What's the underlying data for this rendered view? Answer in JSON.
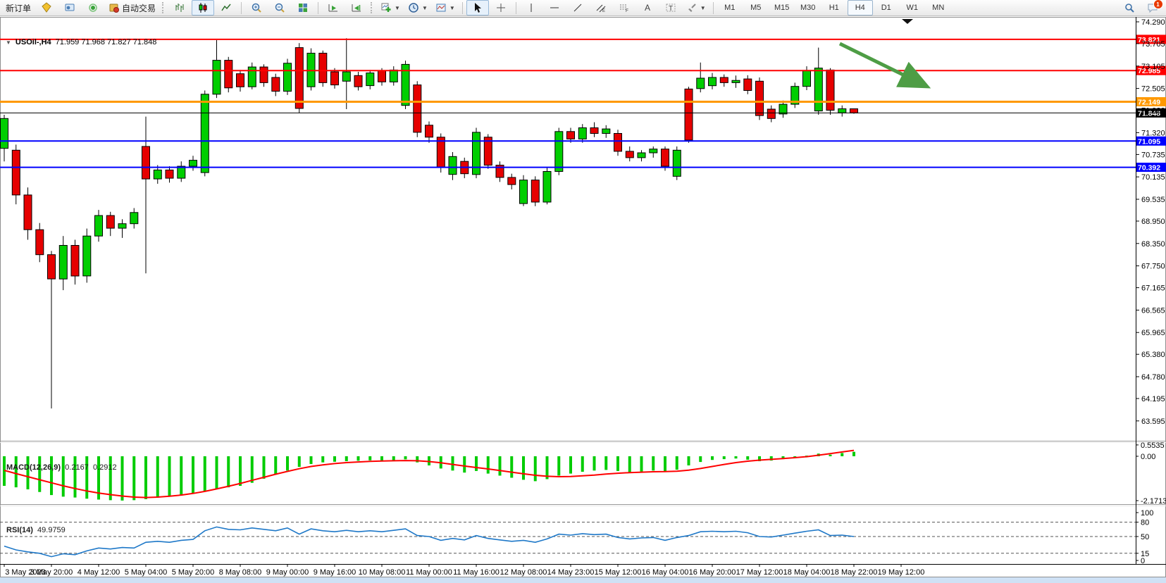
{
  "toolbar": {
    "new_order": "新订单",
    "auto_trading": "自动交易",
    "timeframes": [
      "M1",
      "M5",
      "M15",
      "M30",
      "H1",
      "H4",
      "D1",
      "W1",
      "MN"
    ],
    "active_timeframe": "H4",
    "badge_count": "1"
  },
  "chart": {
    "title_symbol": "USOil-,H4",
    "title_ohlc": "71.959 71.968 71.827 71.848"
  },
  "macd": {
    "name": "MACD(12,26,9)",
    "main": "0.2167",
    "signal": "0.2912",
    "axis": [
      "0.5535",
      "0.00",
      "-2.1713"
    ]
  },
  "rsi": {
    "name": "RSI(14)",
    "value": "49.9759",
    "axis": [
      "100",
      "80",
      "50",
      "15",
      "0"
    ]
  },
  "levels": [
    {
      "label": "73.821",
      "price": 73.821,
      "color": "#FF0000",
      "width": 2
    },
    {
      "label": "72.985",
      "price": 72.985,
      "color": "#FF0000",
      "width": 2
    },
    {
      "label": "72.149",
      "price": 72.149,
      "color": "#FF9900",
      "width": 3
    },
    {
      "label": "71.848",
      "price": 71.848,
      "color": "#000000",
      "width": 1
    },
    {
      "label": "71.095",
      "price": 71.095,
      "color": "#0000FF",
      "width": 2
    },
    {
      "label": "70.392",
      "price": 70.392,
      "color": "#0000FF",
      "width": 2
    }
  ],
  "price_axis": {
    "ticks": [
      "74.290",
      "73.705",
      "73.105",
      "72.505",
      "71.920",
      "71.320",
      "70.735",
      "70.135",
      "69.535",
      "68.950",
      "68.350",
      "67.750",
      "67.165",
      "66.565",
      "65.965",
      "65.380",
      "64.780",
      "64.195",
      "63.595"
    ]
  },
  "time_axis": {
    "labels": [
      "3 May 2023",
      "3 May 20:00",
      "4 May 12:00",
      "5 May 04:00",
      "5 May 20:00",
      "8 May 08:00",
      "9 May 00:00",
      "9 May 16:00",
      "10 May 08:00",
      "11 May 00:00",
      "11 May 16:00",
      "12 May 08:00",
      "14 May 23:00",
      "15 May 12:00",
      "16 May 04:00",
      "16 May 20:00",
      "17 May 12:00",
      "18 May 04:00",
      "18 May 22:00",
      "19 May 12:00"
    ]
  },
  "colors": {
    "candle_up": "#00CE00",
    "candle_down": "#E60000",
    "candle_border": "#000000",
    "level_red": "#FF0000",
    "level_orange": "#FF9900",
    "level_blue": "#0000FF",
    "current_price": "#000000",
    "macd_hist": "#00CC00",
    "macd_signal": "#FF0000",
    "rsi_line": "#1E78C8",
    "arrow": "#4E9D45",
    "axis_text": "#000000"
  },
  "chart_data": {
    "type": "candlestick",
    "symbol": "USOil-",
    "period": "H4",
    "ylim": [
      63.595,
      74.29
    ],
    "x_labels_every_n_bars": 4,
    "candles": [
      [
        70.9,
        71.8,
        70.55,
        71.7
      ],
      [
        70.85,
        71.0,
        69.4,
        69.65
      ],
      [
        69.65,
        69.85,
        68.45,
        68.72
      ],
      [
        68.72,
        68.9,
        67.85,
        68.05
      ],
      [
        68.05,
        68.15,
        63.93,
        67.4
      ],
      [
        67.4,
        68.55,
        67.1,
        68.3
      ],
      [
        68.3,
        68.45,
        67.25,
        67.48
      ],
      [
        67.48,
        68.75,
        67.3,
        68.55
      ],
      [
        68.55,
        69.25,
        68.4,
        69.1
      ],
      [
        69.1,
        69.2,
        68.55,
        68.76
      ],
      [
        68.76,
        69.0,
        68.5,
        68.88
      ],
      [
        68.88,
        69.3,
        68.75,
        69.18
      ],
      [
        70.95,
        71.75,
        67.55,
        70.08
      ],
      [
        70.08,
        70.45,
        69.95,
        70.32
      ],
      [
        70.32,
        70.42,
        69.98,
        70.1
      ],
      [
        70.1,
        70.55,
        70.0,
        70.42
      ],
      [
        70.42,
        70.7,
        70.3,
        70.58
      ],
      [
        70.25,
        72.45,
        70.15,
        72.35
      ],
      [
        72.35,
        73.8,
        72.25,
        73.26
      ],
      [
        73.26,
        73.35,
        72.4,
        72.52
      ],
      [
        72.9,
        73.0,
        72.42,
        72.55
      ],
      [
        72.55,
        73.2,
        72.48,
        73.08
      ],
      [
        73.08,
        73.15,
        72.55,
        72.66
      ],
      [
        72.8,
        72.9,
        72.3,
        72.43
      ],
      [
        72.43,
        73.3,
        72.33,
        73.18
      ],
      [
        73.6,
        73.72,
        71.85,
        71.97
      ],
      [
        72.55,
        73.58,
        72.45,
        73.45
      ],
      [
        73.45,
        73.52,
        72.55,
        72.66
      ],
      [
        72.95,
        73.05,
        72.5,
        72.6
      ],
      [
        72.7,
        73.85,
        71.95,
        72.95
      ],
      [
        72.85,
        72.95,
        72.45,
        72.55
      ],
      [
        72.58,
        73.0,
        72.48,
        72.92
      ],
      [
        72.98,
        73.05,
        72.58,
        72.68
      ],
      [
        72.68,
        73.1,
        72.58,
        73.0
      ],
      [
        72.05,
        73.25,
        71.95,
        73.15
      ],
      [
        72.6,
        72.7,
        71.2,
        71.33
      ],
      [
        71.52,
        71.62,
        71.05,
        71.2
      ],
      [
        71.2,
        71.3,
        70.25,
        70.4
      ],
      [
        70.2,
        70.8,
        70.05,
        70.68
      ],
      [
        70.55,
        70.65,
        70.1,
        70.22
      ],
      [
        70.2,
        71.45,
        70.1,
        71.33
      ],
      [
        71.2,
        71.28,
        70.35,
        70.45
      ],
      [
        70.45,
        70.55,
        70.0,
        70.12
      ],
      [
        70.12,
        70.22,
        69.8,
        69.93
      ],
      [
        69.42,
        70.18,
        69.35,
        70.05
      ],
      [
        70.05,
        70.15,
        69.35,
        69.46
      ],
      [
        69.46,
        70.4,
        69.4,
        70.28
      ],
      [
        70.28,
        71.45,
        70.18,
        71.35
      ],
      [
        71.35,
        71.45,
        71.05,
        71.15
      ],
      [
        71.15,
        71.55,
        71.05,
        71.45
      ],
      [
        71.45,
        71.6,
        71.2,
        71.3
      ],
      [
        71.3,
        71.52,
        71.18,
        71.42
      ],
      [
        71.3,
        71.4,
        70.7,
        70.82
      ],
      [
        70.82,
        70.95,
        70.55,
        70.65
      ],
      [
        70.65,
        70.85,
        70.55,
        70.78
      ],
      [
        70.78,
        70.95,
        70.65,
        70.88
      ],
      [
        70.88,
        70.95,
        70.3,
        70.42
      ],
      [
        70.15,
        70.95,
        70.05,
        70.85
      ],
      [
        72.49,
        72.55,
        71.05,
        71.12
      ],
      [
        72.5,
        73.2,
        72.4,
        72.78
      ],
      [
        72.58,
        72.92,
        72.48,
        72.8
      ],
      [
        72.8,
        72.88,
        72.55,
        72.66
      ],
      [
        72.66,
        72.85,
        72.52,
        72.72
      ],
      [
        72.76,
        72.86,
        72.35,
        72.45
      ],
      [
        72.7,
        72.8,
        71.66,
        71.78
      ],
      [
        71.95,
        72.05,
        71.6,
        71.7
      ],
      [
        71.82,
        72.18,
        71.72,
        72.08
      ],
      [
        72.08,
        72.66,
        71.98,
        72.56
      ],
      [
        72.56,
        73.1,
        72.46,
        72.99
      ],
      [
        71.9,
        73.6,
        71.8,
        73.05
      ],
      [
        73.0,
        73.05,
        71.8,
        71.92
      ],
      [
        71.85,
        72.05,
        71.75,
        71.96
      ],
      [
        71.959,
        71.968,
        71.827,
        71.848
      ]
    ],
    "macd": {
      "params": [
        12,
        26,
        9
      ],
      "current_main": 0.2167,
      "current_signal": 0.2912,
      "scale_top": 0.5535,
      "scale_bottom": -2.1713,
      "histogram": [
        -1.45,
        -1.52,
        -1.62,
        -1.75,
        -1.9,
        -1.98,
        -2.02,
        -2.08,
        -2.12,
        -2.15,
        -2.17,
        -2.15,
        -2.1,
        -2.02,
        -1.95,
        -1.88,
        -1.8,
        -1.7,
        -1.6,
        -1.52,
        -1.45,
        -1.3,
        -1.1,
        -0.9,
        -0.7,
        -0.52,
        -0.38,
        -0.3,
        -0.27,
        -0.24,
        -0.22,
        -0.2,
        -0.21,
        -0.19,
        -0.15,
        -0.3,
        -0.45,
        -0.6,
        -0.7,
        -0.8,
        -0.72,
        -0.85,
        -0.95,
        -1.05,
        -1.15,
        -1.22,
        -1.12,
        -0.95,
        -0.85,
        -0.76,
        -0.7,
        -0.67,
        -0.72,
        -0.78,
        -0.75,
        -0.7,
        -0.76,
        -0.66,
        -0.45,
        -0.28,
        -0.18,
        -0.14,
        -0.11,
        -0.17,
        -0.24,
        -0.21,
        -0.14,
        -0.07,
        0.03,
        0.13,
        0.08,
        0.16,
        0.2167
      ],
      "signal": [
        -0.69,
        -0.85,
        -1.0,
        -1.15,
        -1.3,
        -1.45,
        -1.58,
        -1.7,
        -1.8,
        -1.88,
        -1.95,
        -2.0,
        -2.02,
        -2.0,
        -1.96,
        -1.9,
        -1.82,
        -1.72,
        -1.6,
        -1.47,
        -1.33,
        -1.18,
        -1.03,
        -0.88,
        -0.74,
        -0.61,
        -0.5,
        -0.42,
        -0.36,
        -0.31,
        -0.28,
        -0.25,
        -0.23,
        -0.22,
        -0.21,
        -0.22,
        -0.26,
        -0.32,
        -0.4,
        -0.48,
        -0.55,
        -0.62,
        -0.7,
        -0.78,
        -0.86,
        -0.93,
        -0.98,
        -1.0,
        -0.99,
        -0.96,
        -0.92,
        -0.87,
        -0.83,
        -0.8,
        -0.78,
        -0.76,
        -0.75,
        -0.73,
        -0.68,
        -0.6,
        -0.5,
        -0.4,
        -0.31,
        -0.24,
        -0.19,
        -0.15,
        -0.11,
        -0.07,
        -0.02,
        0.05,
        0.13,
        0.21,
        0.2912
      ]
    },
    "rsi": {
      "period": 14,
      "current": 49.9759,
      "levels": [
        80,
        50,
        15
      ],
      "values": [
        30,
        22,
        18,
        15,
        8,
        14,
        12,
        20,
        26,
        24,
        27,
        26,
        38,
        40,
        38,
        42,
        44,
        62,
        70,
        65,
        64,
        68,
        65,
        62,
        68,
        55,
        66,
        62,
        60,
        63,
        60,
        62,
        60,
        63,
        66,
        52,
        50,
        42,
        46,
        43,
        52,
        46,
        43,
        40,
        42,
        38,
        45,
        55,
        53,
        56,
        54,
        55,
        48,
        45,
        47,
        48,
        42,
        48,
        52,
        60,
        61,
        60,
        61,
        58,
        50,
        49,
        53,
        57,
        61,
        64,
        52,
        53,
        49.98
      ]
    },
    "annotations": [
      {
        "type": "arrow",
        "direction": "down-right",
        "color": "#4E9D45"
      }
    ]
  }
}
